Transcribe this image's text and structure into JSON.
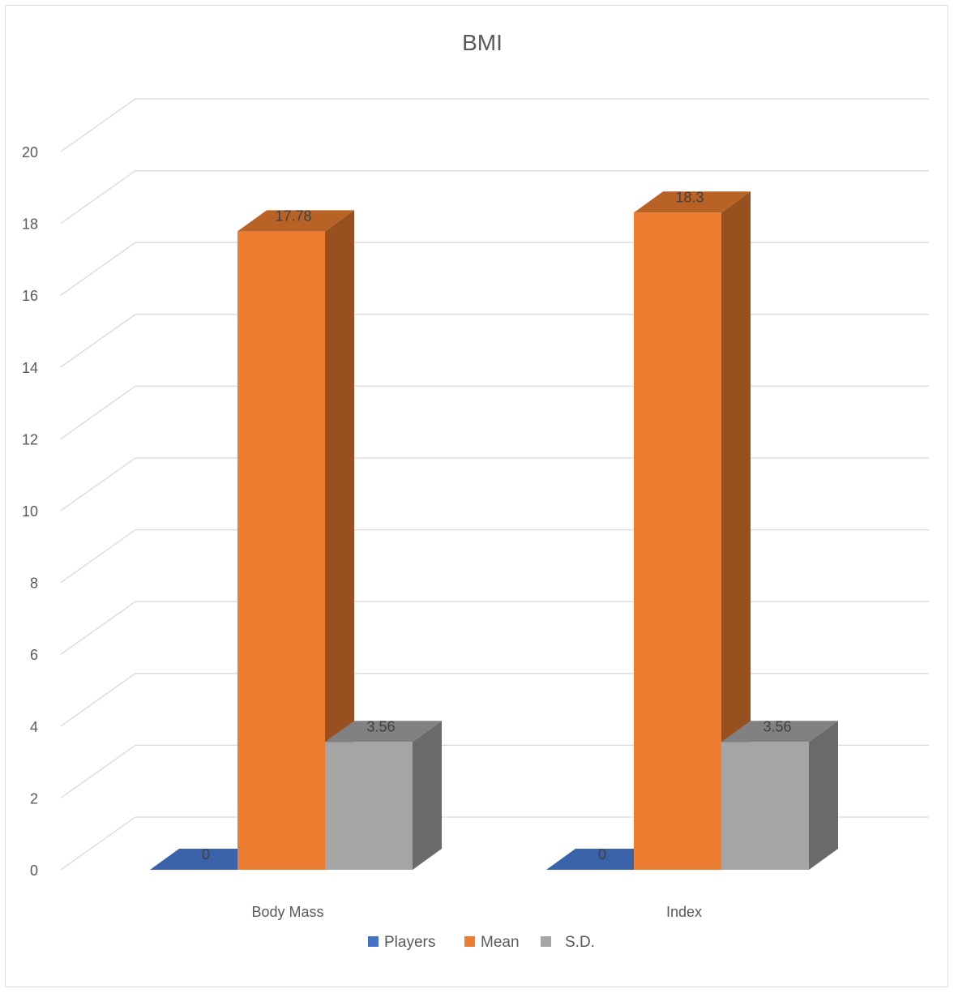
{
  "chart_data": {
    "type": "bar",
    "title": "BMI",
    "categories": [
      "Body Mass",
      "Index"
    ],
    "series": [
      {
        "name": "Players",
        "values": [
          0,
          0
        ],
        "data_labels": [
          "0",
          "0"
        ]
      },
      {
        "name": "Mean",
        "values": [
          17.78,
          18.3
        ],
        "data_labels": [
          "17.78",
          "18.3"
        ]
      },
      {
        "name": "S.D.",
        "values": [
          3.56,
          3.56
        ],
        "data_labels": [
          "3.56",
          "3.56"
        ]
      }
    ],
    "y_ticks": [
      "0",
      "2",
      "4",
      "6",
      "8",
      "10",
      "12",
      "14",
      "16",
      "18",
      "20"
    ],
    "ylim": [
      0,
      20
    ],
    "grid": true,
    "three_d": true,
    "legend_position": "bottom",
    "colors": {
      "Players": "#4472c4",
      "Mean": "#ed7d31",
      "S.D.": "#a5a5a5"
    }
  }
}
